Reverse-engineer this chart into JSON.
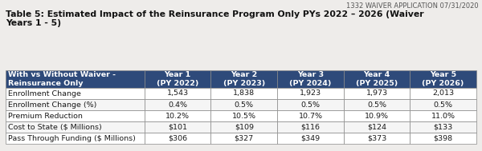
{
  "watermark": "1332 WAIVER APPLICATION 07/31/2020",
  "title_line1": "Table 5: Estimated Impact of the Reinsurance Program Only PYs 2022 – 2026 (Waiver",
  "title_line2": "Years 1 - 5)",
  "header_col": "With vs Without Waiver -\nReinsurance Only",
  "columns": [
    "Year 1\n(PY 2022)",
    "Year 2\n(PY 2023)",
    "Year 3\n(PY 2024)",
    "Year 4\n(PY 2025)",
    "Year 5\n(PY 2026)"
  ],
  "rows": [
    [
      "Enrollment Change",
      "1,543",
      "1,838",
      "1,923",
      "1,973",
      "2,013"
    ],
    [
      "Enrollment Change (%)",
      "0.4%",
      "0.5%",
      "0.5%",
      "0.5%",
      "0.5%"
    ],
    [
      "Premium Reduction",
      "10.2%",
      "10.5%",
      "10.7%",
      "10.9%",
      "11.0%"
    ],
    [
      "Cost to State ($ Millions)",
      "$101",
      "$109",
      "$116",
      "$124",
      "$133"
    ],
    [
      "Pass Through Funding ($ Millions)",
      "$306",
      "$327",
      "$349",
      "$373",
      "$398"
    ]
  ],
  "header_bg": "#2E4A7A",
  "header_fg": "#FFFFFF",
  "row_bg_even": "#FFFFFF",
  "row_bg_odd": "#F5F5F5",
  "border_color": "#888888",
  "title_fontsize": 7.8,
  "watermark_fontsize": 6.0,
  "cell_fontsize": 6.8,
  "header_fontsize": 6.8,
  "bg_color": "#EEECEA"
}
